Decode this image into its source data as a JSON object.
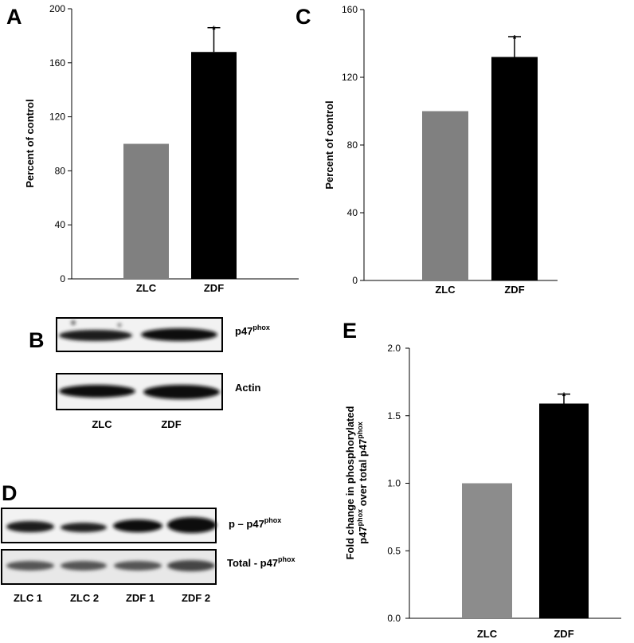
{
  "chart_data": [
    {
      "type": "bar",
      "panel_label": "A",
      "ylabel": "Percent of control",
      "categories": [
        "ZLC",
        "ZDF"
      ],
      "values": [
        100,
        168
      ],
      "errors": [
        null,
        18
      ],
      "value_annotations": [
        null,
        "*"
      ],
      "colors": [
        "#808080",
        "#000000"
      ],
      "ylim": [
        0,
        200
      ],
      "yticks": [
        0,
        40,
        80,
        120,
        160,
        200
      ]
    },
    {
      "type": "bar",
      "panel_label": "C",
      "ylabel": "Percent of control",
      "categories": [
        "ZLC",
        "ZDF"
      ],
      "values": [
        100,
        132
      ],
      "errors": [
        null,
        12
      ],
      "value_annotations": [
        null,
        "*"
      ],
      "colors": [
        "#808080",
        "#000000"
      ],
      "ylim": [
        0,
        160
      ],
      "yticks": [
        0,
        40,
        80,
        120,
        160
      ]
    },
    {
      "type": "bar",
      "panel_label": "E",
      "ylabel": {
        "line1": "Fold change in phosphorylated",
        "line2": [
          "p47",
          "phox",
          " over total p47",
          "phox"
        ]
      },
      "categories": [
        "ZLC",
        "ZDF"
      ],
      "values": [
        1.0,
        1.59
      ],
      "errors": [
        null,
        0.07
      ],
      "value_annotations": [
        null,
        "*"
      ],
      "colors": [
        "#8c8c8c",
        "#000000"
      ],
      "ylim": [
        0,
        2.0
      ],
      "yticks": [
        {
          "value": 0,
          "label": "0.0"
        },
        0.5,
        {
          "value": 1,
          "label": "1.0"
        },
        1.5,
        {
          "value": 2,
          "label": "2.0"
        }
      ]
    }
  ],
  "blots": {
    "B": {
      "panel_label": "B",
      "labels": [
        [
          "p47",
          "phox"
        ],
        [
          "Actin"
        ]
      ],
      "lanes": [
        "ZLC",
        "ZDF"
      ]
    },
    "D": {
      "panel_label": "D",
      "labels": [
        [
          "p – p47",
          "phox"
        ],
        [
          "Total - p47",
          "phox"
        ]
      ],
      "lanes": [
        "ZLC 1",
        "ZLC 2",
        "ZDF 1",
        "ZDF 2"
      ]
    }
  }
}
